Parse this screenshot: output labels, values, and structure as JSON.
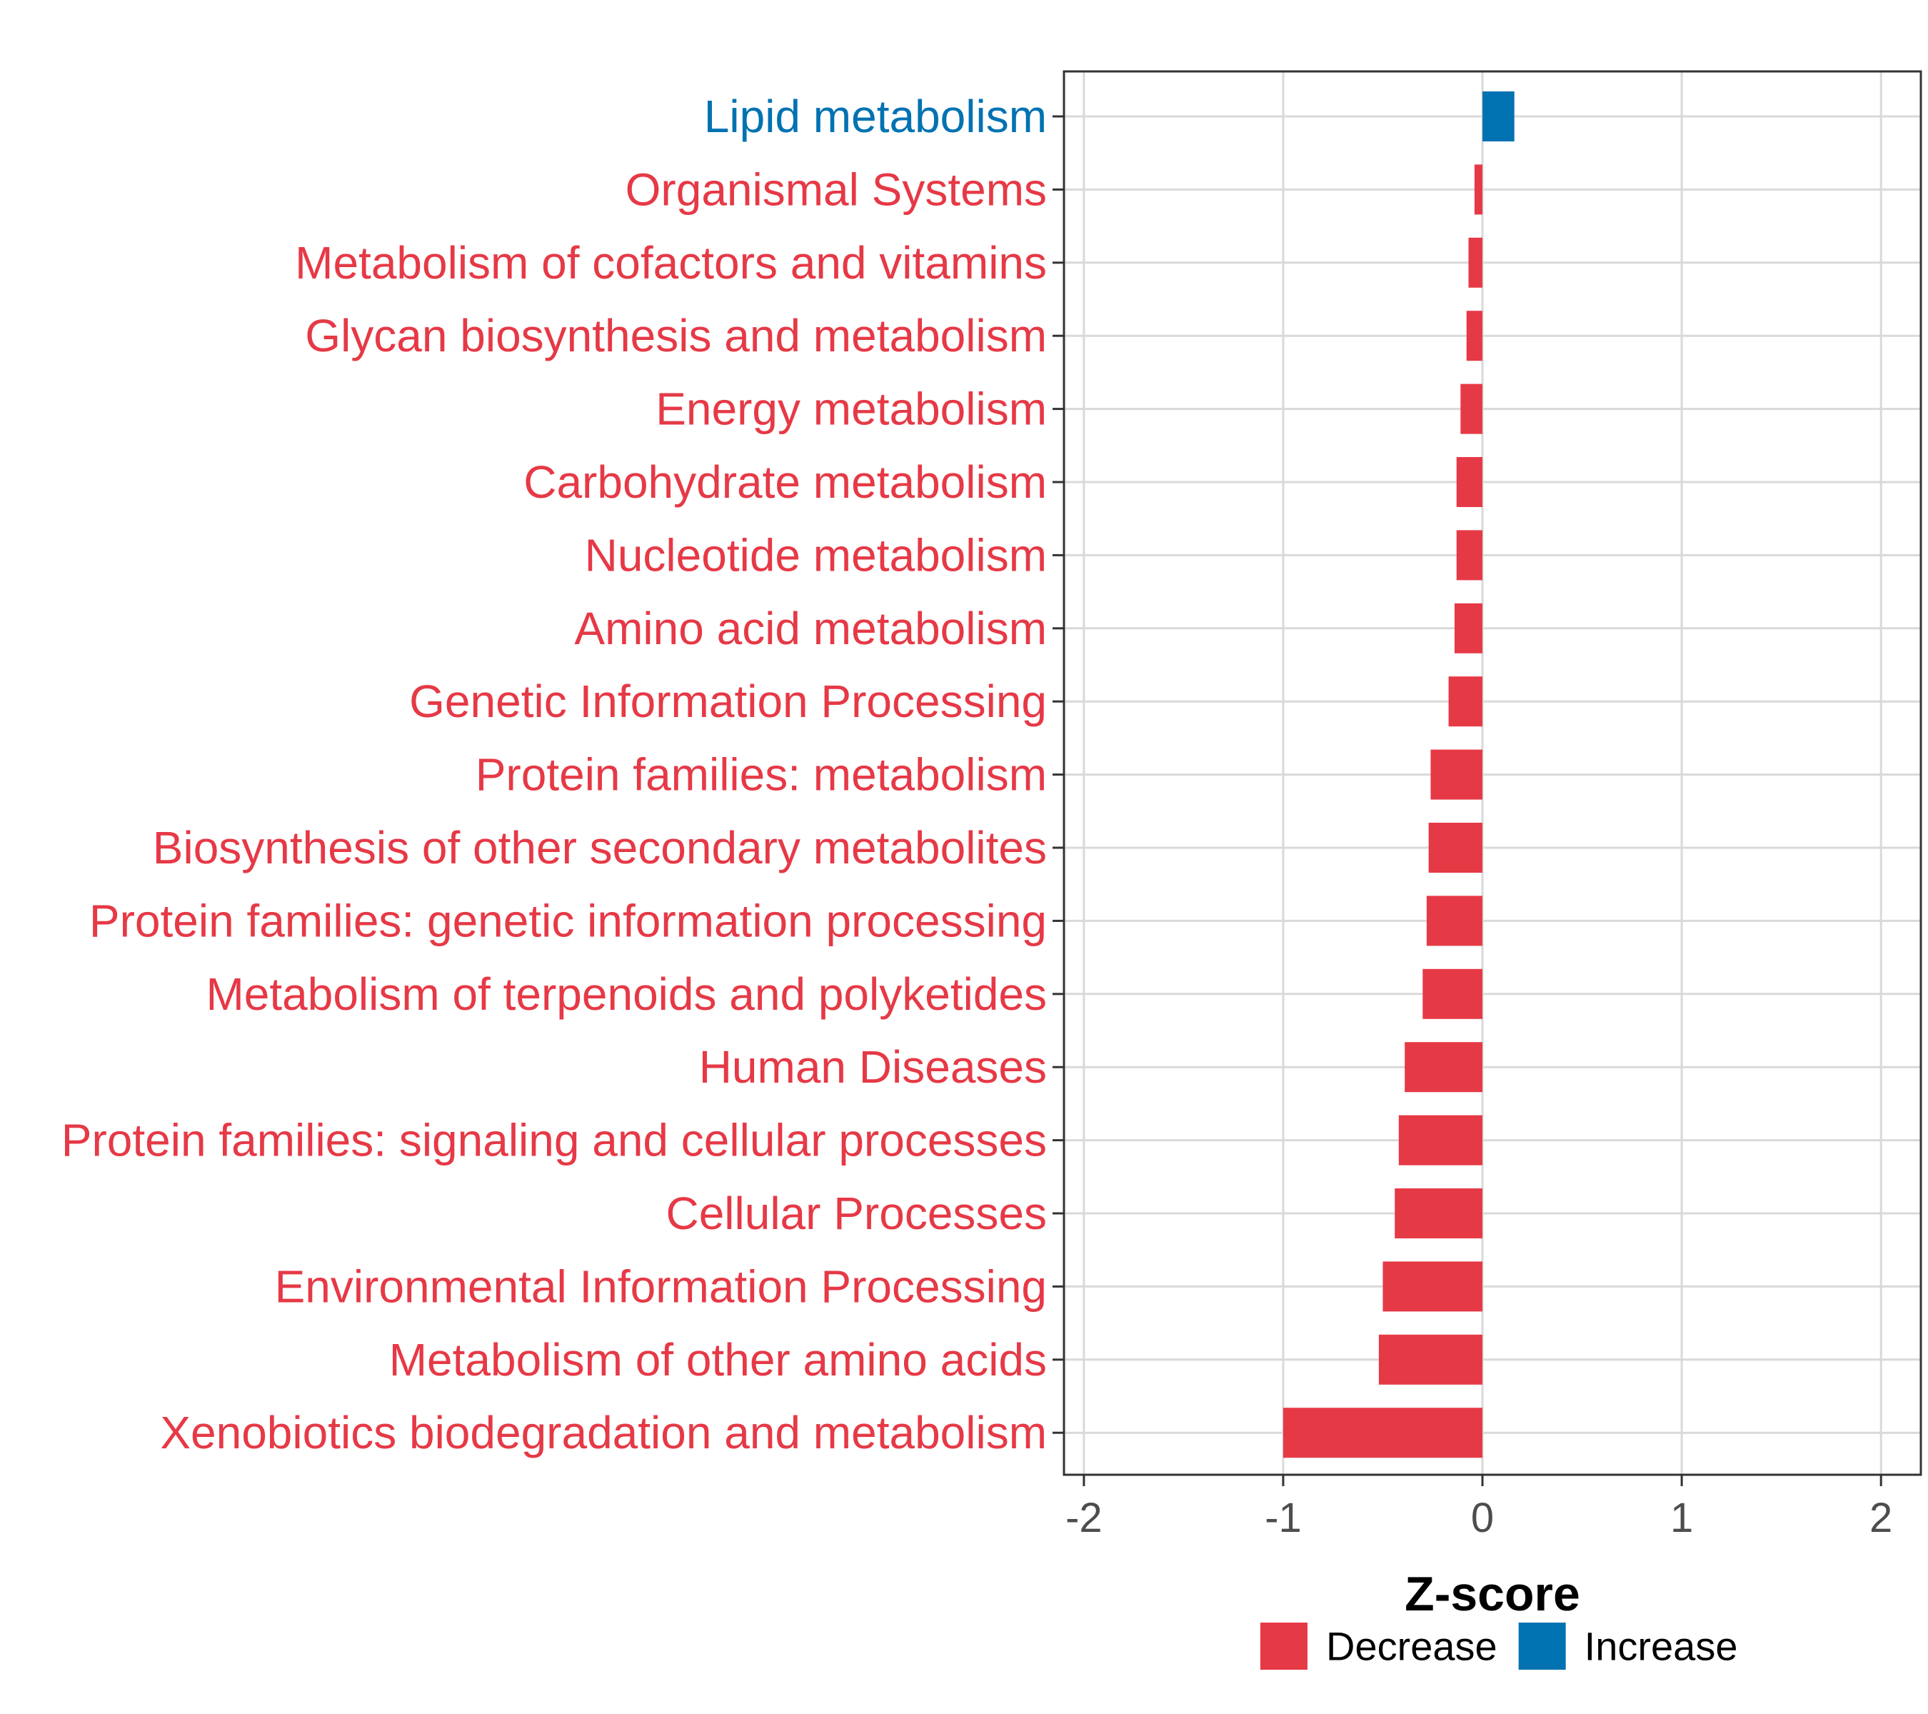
{
  "chart_data": {
    "type": "bar",
    "orientation": "horizontal",
    "xlabel": "Z-score",
    "ylabel": "",
    "xlim": [
      -2.1,
      2.2
    ],
    "xticks": [
      -2,
      -1,
      0,
      1,
      2
    ],
    "xtick_labels": [
      "-2",
      "-1",
      "0",
      "1",
      "2"
    ],
    "grid": true,
    "legend_position": "bottom",
    "categories": [
      "Lipid metabolism",
      "Organismal Systems",
      "Metabolism of cofactors and vitamins",
      "Glycan biosynthesis and metabolism",
      "Energy metabolism",
      "Carbohydrate metabolism",
      "Nucleotide metabolism",
      "Amino acid metabolism",
      "Genetic Information Processing",
      "Protein families: metabolism",
      "Biosynthesis of other secondary metabolites",
      "Protein families: genetic information processing",
      "Metabolism of terpenoids and polyketides",
      "Human Diseases",
      "Protein families: signaling and cellular processes",
      "Cellular Processes",
      "Environmental Information Processing",
      "Metabolism of other amino acids",
      "Xenobiotics biodegradation and metabolism"
    ],
    "values": [
      0.16,
      -0.04,
      -0.07,
      -0.08,
      -0.11,
      -0.13,
      -0.13,
      -0.14,
      -0.17,
      -0.26,
      -0.27,
      -0.28,
      -0.3,
      -0.39,
      -0.42,
      -0.44,
      -0.5,
      -0.52,
      -1.0
    ],
    "groups": [
      "Increase",
      "Decrease",
      "Decrease",
      "Decrease",
      "Decrease",
      "Decrease",
      "Decrease",
      "Decrease",
      "Decrease",
      "Decrease",
      "Decrease",
      "Decrease",
      "Decrease",
      "Decrease",
      "Decrease",
      "Decrease",
      "Decrease",
      "Decrease",
      "Decrease"
    ],
    "legend": [
      {
        "label": "Decrease",
        "color": "#E63946"
      },
      {
        "label": "Increase",
        "color": "#0072B2"
      }
    ],
    "colors": {
      "Decrease": "#E63946",
      "Increase": "#0072B2",
      "grid": "#d9d9d9",
      "panel_border": "#333333"
    }
  }
}
